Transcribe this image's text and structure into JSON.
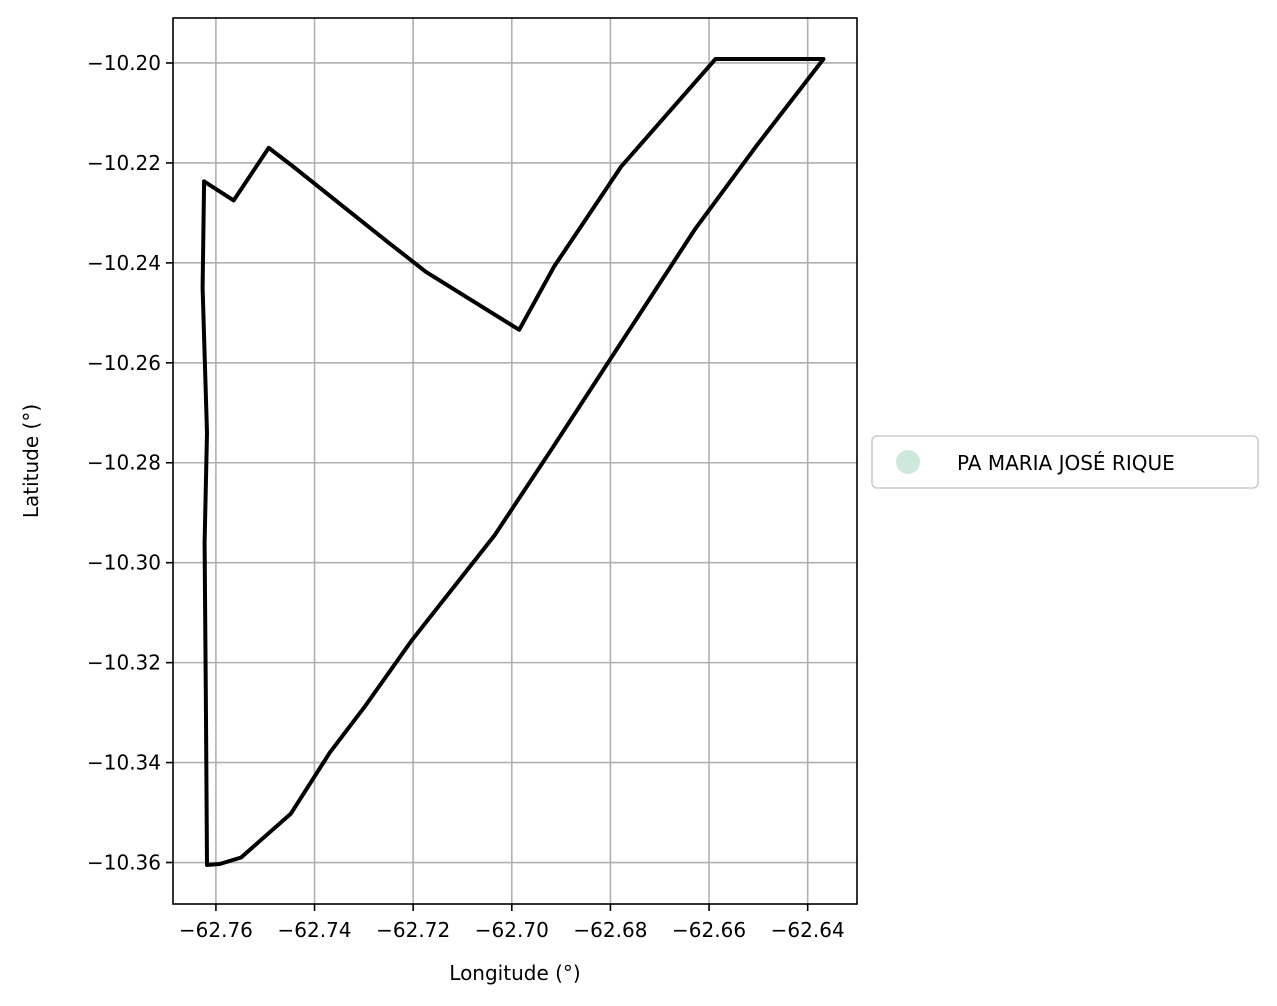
{
  "chart_data": {
    "type": "map",
    "xlabel": "Longitude (°)",
    "ylabel": "Latitude (°)",
    "xlim": [
      -62.7687,
      -62.63
    ],
    "ylim": [
      -10.3683,
      -10.191
    ],
    "grid": true,
    "x_ticks": [
      -62.76,
      -62.74,
      -62.72,
      -62.7,
      -62.68,
      -62.66,
      -62.64
    ],
    "x_tick_labels": [
      "−62.76",
      "−62.74",
      "−62.72",
      "−62.70",
      "−62.68",
      "−62.66",
      "−62.64"
    ],
    "y_ticks": [
      -10.2,
      -10.22,
      -10.24,
      -10.26,
      -10.28,
      -10.3,
      -10.32,
      -10.34,
      -10.36
    ],
    "y_tick_labels": [
      "−10.20",
      "−10.22",
      "−10.24",
      "−10.26",
      "−10.28",
      "−10.30",
      "−10.32",
      "−10.34",
      "−10.36"
    ],
    "legend": {
      "placement": "outside-right",
      "entries": [
        {
          "label": "PA MARIA JOSÉ RIQUE",
          "color": "#cfe8dc"
        }
      ]
    },
    "polygon": {
      "stroke_color": "#000000",
      "points": [
        [
          -62.7624,
          -10.2237
        ],
        [
          -62.7564,
          -10.2275
        ],
        [
          -62.7493,
          -10.217
        ],
        [
          -62.7445,
          -10.2206
        ],
        [
          -62.7253,
          -10.2357
        ],
        [
          -62.7174,
          -10.2418
        ],
        [
          -62.6985,
          -10.2534
        ],
        [
          -62.6914,
          -10.2407
        ],
        [
          -62.6778,
          -10.2207
        ],
        [
          -62.6587,
          -10.1992
        ],
        [
          -62.6368,
          -10.1992
        ],
        [
          -62.6504,
          -10.2166
        ],
        [
          -62.6628,
          -10.2332
        ],
        [
          -62.6916,
          -10.2768
        ],
        [
          -62.7034,
          -10.2944
        ],
        [
          -62.7204,
          -10.3157
        ],
        [
          -62.7298,
          -10.3288
        ],
        [
          -62.7369,
          -10.338
        ],
        [
          -62.7448,
          -10.3502
        ],
        [
          -62.7549,
          -10.359
        ],
        [
          -62.7592,
          -10.3603
        ],
        [
          -62.7618,
          -10.3605
        ],
        [
          -62.762,
          -10.331
        ],
        [
          -62.7623,
          -10.296
        ],
        [
          -62.7618,
          -10.274
        ],
        [
          -62.7627,
          -10.245
        ],
        [
          -62.7624,
          -10.2237
        ]
      ]
    }
  }
}
